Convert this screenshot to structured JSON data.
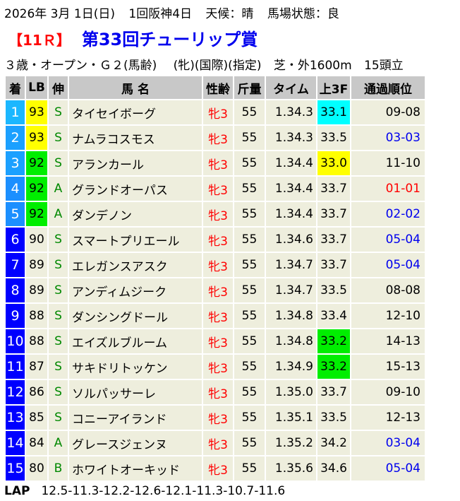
{
  "race_info": {
    "date": "2026年 3月 1日(日)",
    "meeting": "1回阪神4日",
    "weather": "天候：晴",
    "track": "馬場状態：良"
  },
  "race": {
    "number": "【11Ｒ】",
    "name": "第33回チューリップ賞"
  },
  "conditions": {
    "class": "３歳・オープン・Ｇ２(馬齢)",
    "restrictions": "(牝)(国際)(指定)",
    "course": "芝・外1600m",
    "runners": "15頭立"
  },
  "headers": [
    "着",
    "LB",
    "伸",
    "馬 名",
    "性齢",
    "斤量",
    "タイム",
    "上3F",
    "通過順位"
  ],
  "colors": {
    "waku_1": "#1bb7ff",
    "waku_2_3": "#1ba0ff",
    "waku_4_5": "#1b8fff",
    "waku_6_15": "#0000ff",
    "highlight_yellow": "#ffff00",
    "highlight_green": "#00ee00",
    "highlight_cyan": "#00ffff",
    "cell_bg": "#eeeedd",
    "header_bg": "#c8c8c8"
  },
  "rows": [
    {
      "pos": "1",
      "lb": "93",
      "leg": "S",
      "name": "タイセイボーグ",
      "sex": "牝3",
      "wt": "55",
      "time": "1.34.3",
      "l3f": "33.1",
      "pass": "09-08"
    },
    {
      "pos": "2",
      "lb": "93",
      "leg": "S",
      "name": "ナムラコスモス",
      "sex": "牝3",
      "wt": "55",
      "time": "1.34.3",
      "l3f": "33.5",
      "pass": "03-03"
    },
    {
      "pos": "3",
      "lb": "92",
      "leg": "S",
      "name": "アランカール",
      "sex": "牝3",
      "wt": "55",
      "time": "1.34.4",
      "l3f": "33.0",
      "pass": "11-10"
    },
    {
      "pos": "4",
      "lb": "92",
      "leg": "A",
      "name": "グランドオーパス",
      "sex": "牝3",
      "wt": "55",
      "time": "1.34.4",
      "l3f": "33.7",
      "pass": "01-01"
    },
    {
      "pos": "5",
      "lb": "92",
      "leg": "A",
      "name": "ダンデノン",
      "sex": "牝3",
      "wt": "55",
      "time": "1.34.4",
      "l3f": "33.7",
      "pass": "02-02"
    },
    {
      "pos": "6",
      "lb": "90",
      "leg": "S",
      "name": "スマートプリエール",
      "sex": "牝3",
      "wt": "55",
      "time": "1.34.6",
      "l3f": "33.7",
      "pass": "05-04"
    },
    {
      "pos": "7",
      "lb": "89",
      "leg": "S",
      "name": "エレガンスアスク",
      "sex": "牝3",
      "wt": "55",
      "time": "1.34.7",
      "l3f": "33.7",
      "pass": "05-04"
    },
    {
      "pos": "8",
      "lb": "89",
      "leg": "S",
      "name": "アンディムジーク",
      "sex": "牝3",
      "wt": "55",
      "time": "1.34.7",
      "l3f": "33.5",
      "pass": "08-08"
    },
    {
      "pos": "9",
      "lb": "88",
      "leg": "S",
      "name": "ダンシングドール",
      "sex": "牝3",
      "wt": "55",
      "time": "1.34.8",
      "l3f": "33.4",
      "pass": "12-10"
    },
    {
      "pos": "10",
      "lb": "88",
      "leg": "S",
      "name": "エイズルブルーム",
      "sex": "牝3",
      "wt": "55",
      "time": "1.34.8",
      "l3f": "33.2",
      "pass": "14-13"
    },
    {
      "pos": "11",
      "lb": "87",
      "leg": "S",
      "name": "サキドリトッケン",
      "sex": "牝3",
      "wt": "55",
      "time": "1.34.9",
      "l3f": "33.2",
      "pass": "15-13"
    },
    {
      "pos": "12",
      "lb": "86",
      "leg": "S",
      "name": "ソルパッサーレ",
      "sex": "牝3",
      "wt": "55",
      "time": "1.35.0",
      "l3f": "33.7",
      "pass": "09-10"
    },
    {
      "pos": "13",
      "lb": "85",
      "leg": "S",
      "name": "コニーアイランド",
      "sex": "牝3",
      "wt": "55",
      "time": "1.35.1",
      "l3f": "33.5",
      "pass": "12-13"
    },
    {
      "pos": "14",
      "lb": "84",
      "leg": "A",
      "name": "グレースジェンヌ",
      "sex": "牝3",
      "wt": "55",
      "time": "1.35.2",
      "l3f": "34.2",
      "pass": "03-04"
    },
    {
      "pos": "15",
      "lb": "80",
      "leg": "B",
      "name": "ホワイトオーキッド",
      "sex": "牝3",
      "wt": "55",
      "time": "1.35.6",
      "l3f": "34.6",
      "pass": "05-04"
    }
  ],
  "lap": {
    "label": "LAP",
    "values": "12.5-11.3-12.2-12.6-12.1-11.3-10.7-11.6"
  }
}
